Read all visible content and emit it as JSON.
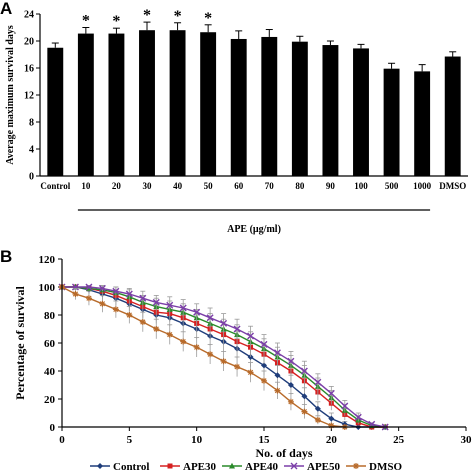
{
  "chart_data": [
    {
      "panel": "A",
      "type": "bar",
      "ylabel": "Average maximum survival days",
      "group_label": "APE (µg/ml)",
      "categories": [
        "Control",
        "10",
        "20",
        "30",
        "40",
        "50",
        "60",
        "70",
        "80",
        "90",
        "100",
        "500",
        "1000",
        "DMSO"
      ],
      "values": [
        19.0,
        21.1,
        21.1,
        21.6,
        21.6,
        21.3,
        20.3,
        20.6,
        19.9,
        19.4,
        18.9,
        15.9,
        15.5,
        17.7
      ],
      "errors": [
        0.7,
        0.9,
        0.8,
        1.2,
        1.1,
        1.1,
        1.2,
        1.1,
        0.8,
        0.6,
        0.6,
        0.8,
        1.0,
        0.7
      ],
      "significant": [
        "",
        "*",
        "*",
        "*",
        "*",
        "*",
        "",
        "",
        "",
        "",
        "",
        "",
        "",
        ""
      ],
      "group_range": [
        "10",
        "1000"
      ],
      "ylim": [
        0,
        24
      ],
      "yticks": [
        0,
        4,
        8,
        12,
        16,
        20,
        24
      ],
      "bar_color": "#000000"
    },
    {
      "panel": "B",
      "type": "line",
      "xlabel": "No. of days",
      "ylabel": "Percentage of survival",
      "xlim": [
        0,
        30
      ],
      "ylim": [
        0,
        120
      ],
      "xticks": [
        0,
        5,
        10,
        15,
        20,
        25,
        30
      ],
      "yticks": [
        0,
        20,
        40,
        60,
        80,
        100,
        120
      ],
      "legend_position": "bottom",
      "series": [
        {
          "name": "Control",
          "color": "#1f3d7a",
          "marker": "diamond",
          "x": [
            0,
            1,
            2,
            3,
            4,
            5,
            6,
            7,
            8,
            9,
            10,
            11,
            12,
            13,
            14,
            15,
            16,
            17,
            18,
            19,
            20,
            21,
            22,
            23,
            24
          ],
          "y": [
            100,
            100,
            98,
            95,
            92,
            88,
            84,
            80,
            78,
            74,
            70,
            65,
            61,
            56,
            50,
            44,
            37,
            30,
            22,
            13,
            6,
            2,
            0,
            0,
            0
          ],
          "err": [
            0,
            0,
            3,
            4,
            5,
            5,
            6,
            6,
            6,
            6,
            7,
            7,
            7,
            7,
            7,
            7,
            7,
            7,
            6,
            5,
            4,
            2,
            0,
            0,
            0
          ]
        },
        {
          "name": "APE30",
          "color": "#d62020",
          "marker": "square",
          "x": [
            0,
            1,
            2,
            3,
            4,
            5,
            6,
            7,
            8,
            9,
            10,
            11,
            12,
            13,
            14,
            15,
            16,
            17,
            18,
            19,
            20,
            21,
            22,
            23,
            24
          ],
          "y": [
            100,
            100,
            99,
            97,
            94,
            90,
            86,
            82,
            81,
            78,
            74,
            70,
            66,
            61,
            57,
            52,
            46,
            40,
            33,
            25,
            17,
            9,
            3,
            0,
            0
          ],
          "err": [
            0,
            0,
            2,
            3,
            4,
            5,
            5,
            6,
            6,
            6,
            6,
            7,
            7,
            7,
            7,
            7,
            7,
            7,
            7,
            6,
            5,
            4,
            2,
            0,
            0
          ]
        },
        {
          "name": "APE40",
          "color": "#2a8a2a",
          "marker": "triangle",
          "x": [
            0,
            1,
            2,
            3,
            4,
            5,
            6,
            7,
            8,
            9,
            10,
            11,
            12,
            13,
            14,
            15,
            16,
            17,
            18,
            19,
            20,
            21,
            22,
            23,
            24
          ],
          "y": [
            100,
            100,
            99,
            98,
            96,
            93,
            89,
            86,
            84,
            82,
            78,
            74,
            70,
            66,
            61,
            56,
            50,
            44,
            37,
            29,
            21,
            12,
            5,
            1,
            0
          ],
          "err": [
            0,
            0,
            2,
            3,
            4,
            5,
            5,
            6,
            6,
            6,
            6,
            7,
            7,
            7,
            7,
            7,
            7,
            7,
            7,
            6,
            5,
            4,
            3,
            1,
            0
          ]
        },
        {
          "name": "APE50",
          "color": "#7b3fa8",
          "marker": "x",
          "x": [
            0,
            1,
            2,
            3,
            4,
            5,
            6,
            7,
            8,
            9,
            10,
            11,
            12,
            13,
            14,
            15,
            16,
            17,
            18,
            19,
            20,
            21,
            22,
            23,
            24
          ],
          "y": [
            100,
            100,
            100,
            99,
            97,
            95,
            92,
            89,
            87,
            85,
            82,
            78,
            74,
            70,
            65,
            59,
            53,
            47,
            40,
            32,
            24,
            15,
            7,
            2,
            0
          ],
          "err": [
            0,
            0,
            1,
            2,
            3,
            4,
            5,
            5,
            6,
            6,
            6,
            7,
            7,
            7,
            7,
            7,
            7,
            7,
            7,
            6,
            5,
            4,
            3,
            1,
            0
          ]
        },
        {
          "name": "DMSO",
          "color": "#b86b2b",
          "marker": "asterisk",
          "x": [
            0,
            1,
            2,
            3,
            4,
            5,
            6,
            7,
            8,
            9,
            10,
            11,
            12,
            13,
            14,
            15,
            16,
            17,
            18,
            19,
            20,
            21
          ],
          "y": [
            100,
            95,
            92,
            88,
            84,
            80,
            75,
            70,
            66,
            61,
            57,
            52,
            47,
            43,
            39,
            33,
            26,
            18,
            11,
            5,
            1,
            0
          ],
          "err": [
            0,
            4,
            5,
            6,
            6,
            6,
            7,
            7,
            7,
            7,
            7,
            7,
            7,
            7,
            7,
            7,
            6,
            6,
            5,
            3,
            1,
            0
          ]
        }
      ]
    }
  ]
}
